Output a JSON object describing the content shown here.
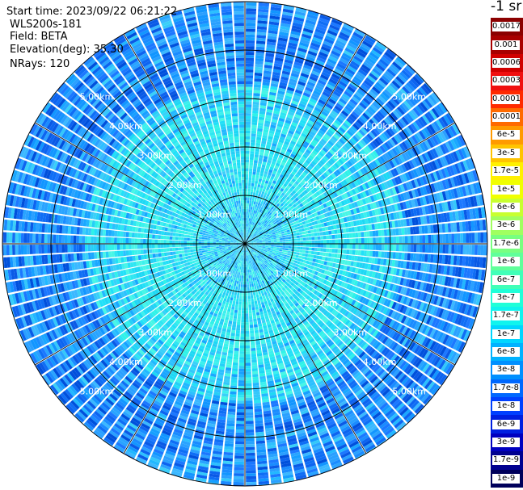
{
  "info": {
    "start_time": "Start time: 2023/09/22 06:21:22",
    "instrument": "WLS200s-181",
    "field": "Field: BETA",
    "elevation": "Elevation(deg): 35.30",
    "nrays": "NRays: 120"
  },
  "colorbar": {
    "units": "-1 sr",
    "labels": [
      "0.0017",
      "0.001",
      "0.0006",
      "0.0003",
      "0.00017",
      "0.0001",
      "6e-5",
      "3e-5",
      "1.7e-5",
      "1e-5",
      "6e-6",
      "3e-6",
      "1.7e-6",
      "1e-6",
      "6e-7",
      "3e-7",
      "1.7e-7",
      "1e-7",
      "6e-8",
      "3e-8",
      "1.7e-8",
      "1e-8",
      "6e-9",
      "3e-9",
      "1.7e-9",
      "1e-9"
    ],
    "colors": [
      "#8b0000",
      "#a80000",
      "#d00000",
      "#f01010",
      "#ff2a00",
      "#ff6a00",
      "#ff9a00",
      "#ffc400",
      "#fff000",
      "#f0ff00",
      "#c8ff30",
      "#a0ff60",
      "#78ff80",
      "#60ff9a",
      "#40ffb8",
      "#20ffd8",
      "#10f4ee",
      "#00d6ff",
      "#00b2ff",
      "#0090ff",
      "#0068ff",
      "#0040ff",
      "#0020e0",
      "#0000c0",
      "#000090",
      "#00005a"
    ]
  },
  "chart_data": {
    "type": "heatmap",
    "projection": "polar PPI",
    "variable": "BETA",
    "nrays": 120,
    "range_labels_km": [
      "1.00km",
      "2.00km",
      "3.00km",
      "4.00km",
      "5.00km"
    ],
    "range_rings_km": [
      1,
      2,
      3,
      4,
      5
    ],
    "max_range_km": 5.0,
    "spoke_spacing_deg": 30,
    "color_scale": "log",
    "beta_range_m-1sr-1": [
      1e-09,
      0.0017
    ]
  }
}
